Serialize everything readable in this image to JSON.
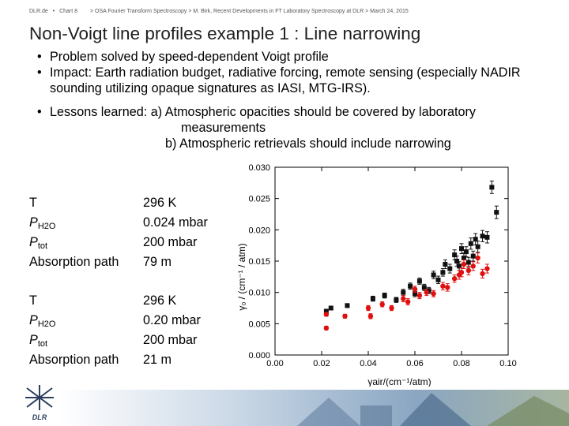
{
  "header": {
    "org": "DLR.de",
    "sep1": "•",
    "chart_label": "Chart 8",
    "breadcrumb": "> OSA Fourier Transform Spectroscopy > M. Birk, Recent Developments in FT Laboratory Spectroscopy at DLR > March 24, 2015"
  },
  "title": "Non-Voigt line profiles example 1 : Line narrowing",
  "bullets": {
    "b1": "Problem solved by speed-dependent Voigt profile",
    "b2": "Impact: Earth radiation budget, radiative forcing, remote sensing (especially NADIR sounding utilizing opaque signatures as IASI, MTG-IRS).",
    "b3_line1": "Lessons learned: a) Atmospheric opacities should be covered by laboratory",
    "b3_line2": "measurements",
    "b3_line3": "b) Atmospheric retrievals should include narrowing"
  },
  "params1": [
    {
      "label": "T",
      "value": "296 K"
    },
    {
      "label_main": "P",
      "label_sub": "H2O",
      "value": "0.024 mbar"
    },
    {
      "label_main": "P",
      "label_sub": "tot",
      "value": "200 mbar"
    },
    {
      "label": "Absorption path",
      "value": "79 m"
    }
  ],
  "params2": [
    {
      "label": "T",
      "value": "296 K"
    },
    {
      "label_main": "P",
      "label_sub": "H2O",
      "value": "0.20 mbar"
    },
    {
      "label_main": "P",
      "label_sub": "tot",
      "value": "200 mbar"
    },
    {
      "label": "Absorption path",
      "value": "21 m"
    }
  ],
  "logo_text": "DLR",
  "colors": {
    "series_black": "#111111",
    "series_red": "#e01010",
    "title": "#1f1f1f"
  },
  "chart_data": {
    "type": "scatter",
    "xlabel": "γair/(cm⁻¹/atm)",
    "ylabel": "γ₀ / (cm⁻¹ / atm)",
    "xlim": [
      0.0,
      0.1
    ],
    "ylim": [
      0.0,
      0.03
    ],
    "x_ticks": [
      "0.00",
      "0.02",
      "0.04",
      "0.06",
      "0.08",
      "0.10"
    ],
    "y_ticks": [
      "0.000",
      "0.005",
      "0.010",
      "0.015",
      "0.020",
      "0.025",
      "0.030"
    ],
    "grid": false,
    "series": [
      {
        "marker": "square",
        "color": "#111111",
        "points": [
          [
            0.022,
            0.007,
            0.0003
          ],
          [
            0.024,
            0.0075,
            0.0003
          ],
          [
            0.031,
            0.0079,
            0.0003
          ],
          [
            0.042,
            0.009,
            0.0004
          ],
          [
            0.047,
            0.0095,
            0.0004
          ],
          [
            0.052,
            0.0088,
            0.0004
          ],
          [
            0.055,
            0.01,
            0.0005
          ],
          [
            0.058,
            0.011,
            0.0005
          ],
          [
            0.06,
            0.0098,
            0.0005
          ],
          [
            0.062,
            0.0118,
            0.0005
          ],
          [
            0.064,
            0.0108,
            0.0005
          ],
          [
            0.066,
            0.0103,
            0.0005
          ],
          [
            0.068,
            0.0128,
            0.0006
          ],
          [
            0.07,
            0.012,
            0.0006
          ],
          [
            0.072,
            0.0132,
            0.0006
          ],
          [
            0.073,
            0.0145,
            0.0007
          ],
          [
            0.075,
            0.0138,
            0.0007
          ],
          [
            0.077,
            0.016,
            0.0008
          ],
          [
            0.078,
            0.015,
            0.0008
          ],
          [
            0.079,
            0.0142,
            0.0007
          ],
          [
            0.08,
            0.017,
            0.0008
          ],
          [
            0.081,
            0.0155,
            0.0008
          ],
          [
            0.082,
            0.0165,
            0.0008
          ],
          [
            0.083,
            0.0148,
            0.0008
          ],
          [
            0.084,
            0.0178,
            0.0009
          ],
          [
            0.085,
            0.0158,
            0.0008
          ],
          [
            0.086,
            0.0185,
            0.0009
          ],
          [
            0.087,
            0.0173,
            0.0009
          ],
          [
            0.089,
            0.019,
            0.0009
          ],
          [
            0.091,
            0.0188,
            0.0009
          ],
          [
            0.093,
            0.0268,
            0.001
          ],
          [
            0.095,
            0.0228,
            0.001
          ]
        ]
      },
      {
        "marker": "circle",
        "color": "#e01010",
        "points": [
          [
            0.022,
            0.0065,
            0.0003
          ],
          [
            0.022,
            0.0043,
            0.0003
          ],
          [
            0.03,
            0.0062,
            0.0003
          ],
          [
            0.04,
            0.0075,
            0.0004
          ],
          [
            0.041,
            0.0062,
            0.0004
          ],
          [
            0.046,
            0.0081,
            0.0004
          ],
          [
            0.05,
            0.0075,
            0.0004
          ],
          [
            0.055,
            0.009,
            0.0005
          ],
          [
            0.057,
            0.0085,
            0.0005
          ],
          [
            0.06,
            0.0105,
            0.0005
          ],
          [
            0.062,
            0.0095,
            0.0005
          ],
          [
            0.065,
            0.01,
            0.0005
          ],
          [
            0.068,
            0.0098,
            0.0005
          ],
          [
            0.072,
            0.011,
            0.0006
          ],
          [
            0.074,
            0.0108,
            0.0006
          ],
          [
            0.077,
            0.0122,
            0.0006
          ],
          [
            0.079,
            0.0128,
            0.0007
          ],
          [
            0.08,
            0.0132,
            0.0007
          ],
          [
            0.081,
            0.0145,
            0.0007
          ],
          [
            0.083,
            0.0135,
            0.0007
          ],
          [
            0.085,
            0.0142,
            0.0007
          ],
          [
            0.087,
            0.0155,
            0.0008
          ],
          [
            0.089,
            0.013,
            0.0007
          ],
          [
            0.091,
            0.0138,
            0.0007
          ]
        ]
      }
    ]
  }
}
